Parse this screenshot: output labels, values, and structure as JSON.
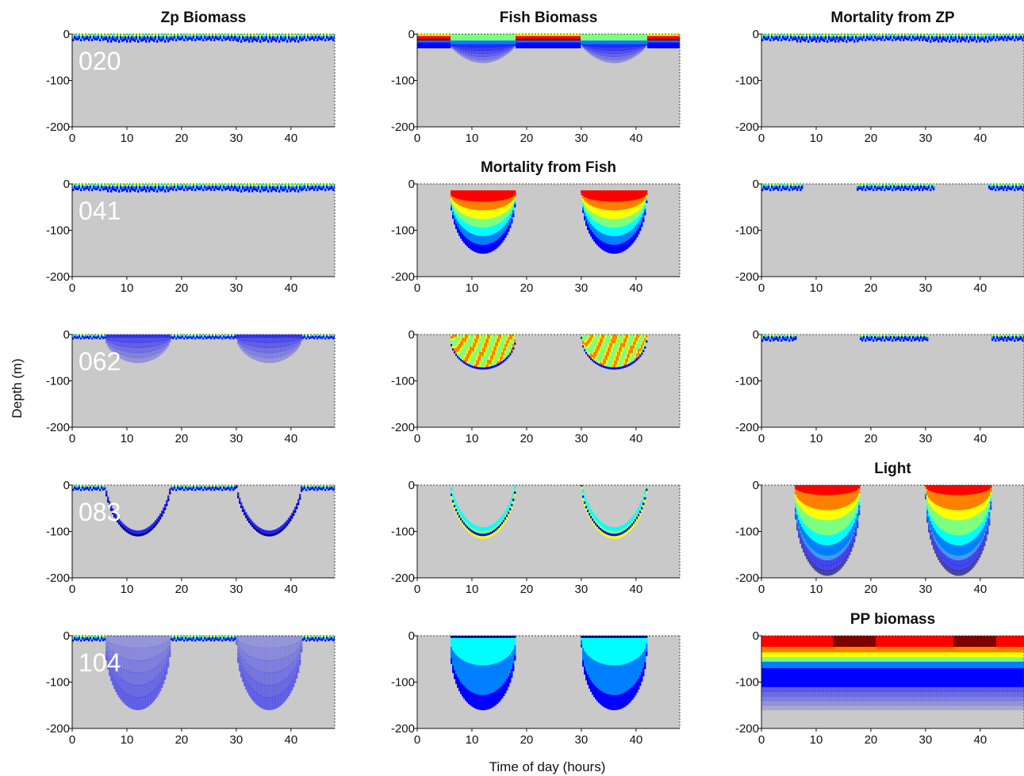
{
  "figure": {
    "ylabel": "Depth (m)",
    "xlabel": "Time of day (hours)"
  },
  "colors": {
    "background": "#c9c9c9",
    "colormap": [
      "#00007f",
      "#0000ff",
      "#007fff",
      "#00ffff",
      "#7fff7f",
      "#ffff00",
      "#ff7f00",
      "#ff0000",
      "#7f0000"
    ]
  },
  "chart_data": [
    {
      "type": "heatmap",
      "title": "Zp Biomass",
      "run_label": "020",
      "pattern": "surface_band",
      "band_depth": 15,
      "xlim": [
        0,
        48
      ],
      "ylim": [
        -200,
        0
      ],
      "xticks": [
        0,
        10,
        20,
        30,
        40
      ],
      "yticks": [
        0,
        -100,
        -200
      ]
    },
    {
      "type": "heatmap",
      "title": "Fish Biomass",
      "run_label": "",
      "pattern": "fish_surface",
      "band_depth": 30,
      "xlim": [
        0,
        48
      ],
      "ylim": [
        -200,
        0
      ],
      "xticks": [
        0,
        10,
        20,
        30,
        40
      ],
      "yticks": [
        0,
        -100,
        -200
      ]
    },
    {
      "type": "heatmap",
      "title": "Mortality from ZP",
      "run_label": "",
      "pattern": "surface_band",
      "band_depth": 15,
      "xlim": [
        0,
        48
      ],
      "ylim": [
        -200,
        0
      ],
      "xticks": [
        0,
        10,
        20,
        30,
        40
      ],
      "yticks": [
        0,
        -100,
        -200
      ]
    },
    {
      "type": "heatmap",
      "title": "",
      "run_label": "041",
      "pattern": "surface_band",
      "band_depth": 15,
      "xlim": [
        0,
        48
      ],
      "ylim": [
        -200,
        0
      ],
      "xticks": [
        0,
        10,
        20,
        30,
        40
      ],
      "yticks": [
        0,
        -100,
        -200
      ]
    },
    {
      "type": "heatmap",
      "title": "Mortality from Fish",
      "run_label": "",
      "pattern": "deep_bowl",
      "max_depth": 150,
      "xlim": [
        0,
        48
      ],
      "ylim": [
        -200,
        0
      ],
      "xticks": [
        0,
        10,
        20,
        30,
        40
      ],
      "yticks": [
        0,
        -100,
        -200
      ]
    },
    {
      "type": "heatmap",
      "title": "",
      "run_label": "",
      "pattern": "night_band",
      "band_depth": 15,
      "xlim": [
        0,
        48
      ],
      "ylim": [
        -200,
        0
      ],
      "xticks": [
        0,
        10,
        20,
        30,
        40
      ],
      "yticks": [
        0,
        -100,
        -200
      ]
    },
    {
      "type": "heatmap",
      "title": "",
      "run_label": "062",
      "pattern": "shallow_patch",
      "max_depth": 55,
      "xlim": [
        0,
        48
      ],
      "ylim": [
        -200,
        0
      ],
      "xticks": [
        0,
        10,
        20,
        30,
        40
      ],
      "yticks": [
        0,
        -100,
        -200
      ]
    },
    {
      "type": "heatmap",
      "title": "",
      "run_label": "",
      "pattern": "mid_patch",
      "max_depth": 75,
      "xlim": [
        0,
        48
      ],
      "ylim": [
        -200,
        0
      ],
      "xticks": [
        0,
        10,
        20,
        30,
        40
      ],
      "yticks": [
        0,
        -100,
        -200
      ]
    },
    {
      "type": "heatmap",
      "title": "",
      "run_label": "",
      "pattern": "night_band_narrow",
      "band_depth": 15,
      "xlim": [
        0,
        48
      ],
      "ylim": [
        -200,
        0
      ],
      "xticks": [
        0,
        10,
        20,
        30,
        40
      ],
      "yticks": [
        0,
        -100,
        -200
      ]
    },
    {
      "type": "heatmap",
      "title": "",
      "run_label": "083",
      "pattern": "migration_line",
      "max_depth": 110,
      "xlim": [
        0,
        48
      ],
      "ylim": [
        -200,
        0
      ],
      "xticks": [
        0,
        10,
        20,
        30,
        40
      ],
      "yticks": [
        0,
        -100,
        -200
      ]
    },
    {
      "type": "heatmap",
      "title": "",
      "run_label": "",
      "pattern": "crescent",
      "max_depth": 115,
      "xlim": [
        0,
        48
      ],
      "ylim": [
        -200,
        0
      ],
      "xticks": [
        0,
        10,
        20,
        30,
        40
      ],
      "yticks": [
        0,
        -100,
        -200
      ]
    },
    {
      "type": "heatmap",
      "title": "Light",
      "run_label": "",
      "pattern": "light",
      "max_depth": 195,
      "xlim": [
        0,
        48
      ],
      "ylim": [
        -200,
        0
      ],
      "xticks": [
        0,
        10,
        20,
        30,
        40
      ],
      "yticks": [
        0,
        -100,
        -200
      ]
    },
    {
      "type": "heatmap",
      "title": "",
      "run_label": "104",
      "pattern": "faint_bowl",
      "max_depth": 160,
      "xlim": [
        0,
        48
      ],
      "ylim": [
        -200,
        0
      ],
      "xticks": [
        0,
        10,
        20,
        30,
        40
      ],
      "yticks": [
        0,
        -100,
        -200
      ]
    },
    {
      "type": "heatmap",
      "title": "",
      "run_label": "",
      "pattern": "cyan_bowl",
      "max_depth": 160,
      "xlim": [
        0,
        48
      ],
      "ylim": [
        -200,
        0
      ],
      "xticks": [
        0,
        10,
        20,
        30,
        40
      ],
      "yticks": [
        0,
        -100,
        -200
      ]
    },
    {
      "type": "heatmap",
      "title": "PP biomass",
      "run_label": "",
      "pattern": "pp_layers",
      "max_depth": 160,
      "xlim": [
        0,
        48
      ],
      "ylim": [
        -200,
        0
      ],
      "xticks": [
        0,
        10,
        20,
        30,
        40
      ],
      "yticks": [
        0,
        -100,
        -200
      ]
    }
  ]
}
